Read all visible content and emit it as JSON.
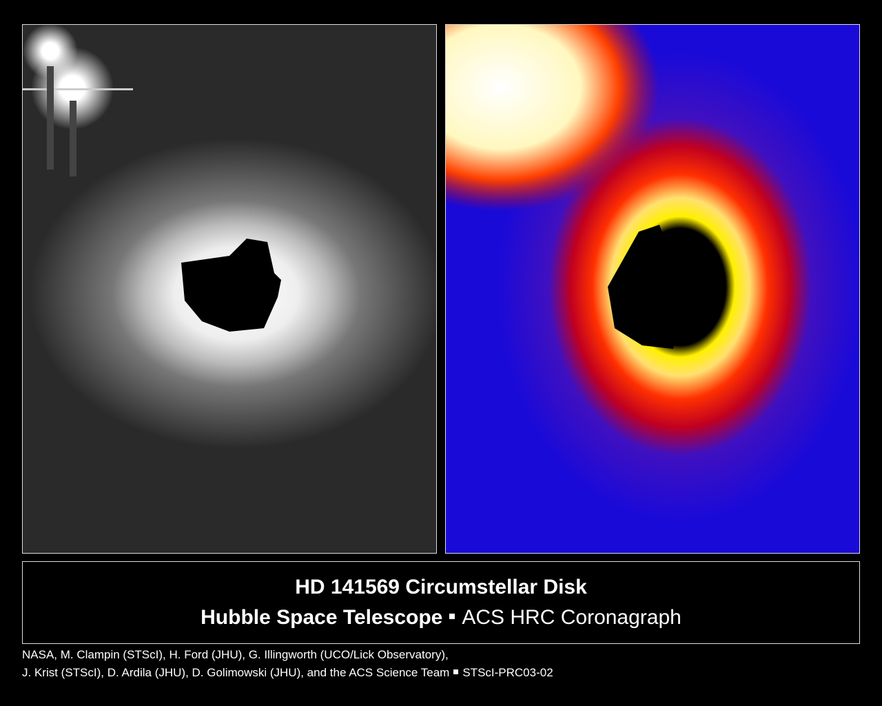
{
  "caption": {
    "title": "HD 141569 Circumstellar Disk",
    "subtitle": [
      "Hubble Space Telescope",
      "ACS HRC Coronagraph"
    ]
  },
  "credits": {
    "line1": "NASA, M. Clampin (STScI), H. Ford (JHU), G. Illingworth (UCO/Lick Observatory),",
    "line2": "J. Krist (STScI), D. Ardila (JHU), D. Golimowski (JHU), and the ACS Science Team",
    "id": "STScI-PRC03-02"
  }
}
